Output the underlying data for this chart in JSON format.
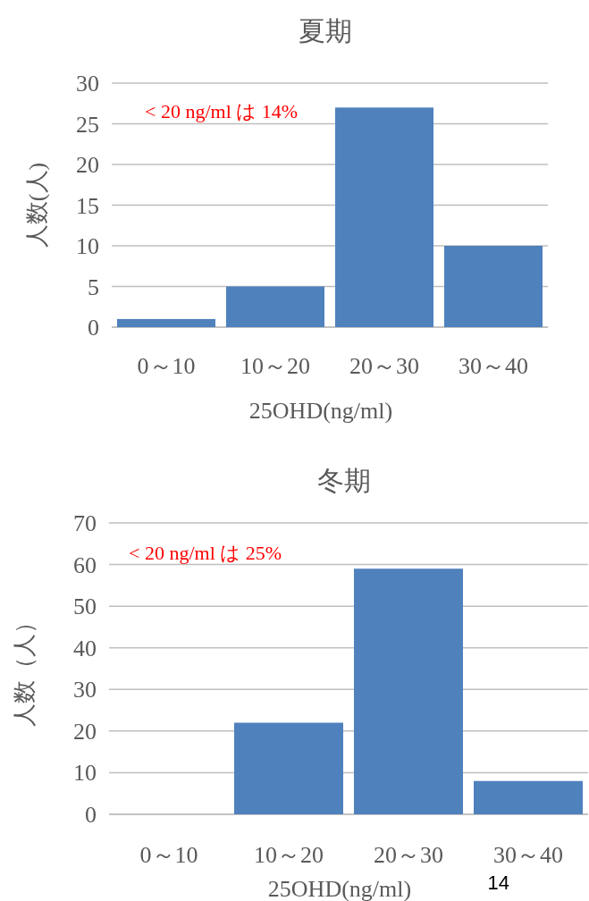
{
  "chart_data": [
    {
      "type": "bar",
      "title": "夏期",
      "xlabel": "25OHD(ng/ml)",
      "ylabel": "人数(人)",
      "categories": [
        "0～10",
        "10～20",
        "20～30",
        "30～40"
      ],
      "values": [
        1,
        5,
        27,
        10
      ],
      "color": "#4f81bd",
      "ylim": [
        0,
        30
      ],
      "yticks": [
        0,
        5,
        10,
        15,
        20,
        25,
        30
      ],
      "grid": "y",
      "annotations": [
        "< 20 ng/ml は 14%"
      ]
    },
    {
      "type": "bar",
      "title": "冬期",
      "xlabel": "25OHD(ng/ml)",
      "ylabel": "人数（人）",
      "categories": [
        "0～10",
        "10～20",
        "20～30",
        "30～40"
      ],
      "values": [
        0,
        22,
        59,
        8
      ],
      "color": "#4f81bd",
      "ylim": [
        0,
        70
      ],
      "yticks": [
        0,
        10,
        20,
        30,
        40,
        50,
        60,
        70
      ],
      "grid": "y",
      "annotations": [
        "< 20 ng/ml は 25%",
        "14"
      ]
    }
  ]
}
